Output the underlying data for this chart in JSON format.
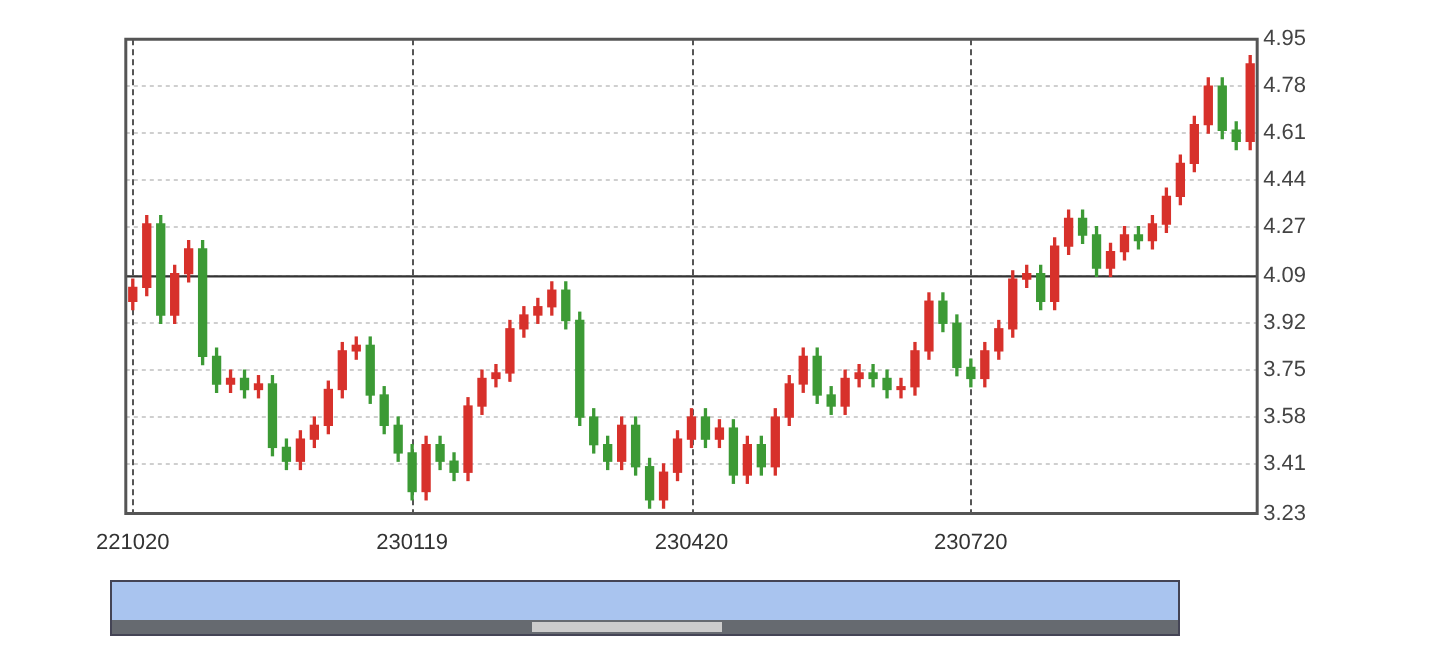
{
  "chart_data": {
    "type": "candlestick",
    "categories": [
      "221020",
      null,
      null,
      null,
      null,
      null,
      null,
      null,
      null,
      null,
      null,
      null,
      null,
      null,
      null,
      null,
      null,
      null,
      null,
      null,
      "230119",
      null,
      null,
      null,
      null,
      null,
      null,
      null,
      null,
      null,
      null,
      null,
      null,
      null,
      null,
      null,
      null,
      null,
      null,
      null,
      "230420",
      null,
      null,
      null,
      null,
      null,
      null,
      null,
      null,
      null,
      null,
      null,
      null,
      null,
      null,
      null,
      null,
      null,
      null,
      null,
      "230720",
      null,
      null,
      null,
      null,
      null,
      null,
      null,
      null,
      null,
      null,
      null,
      null,
      null,
      null,
      null,
      null,
      null,
      null,
      null,
      null
    ],
    "ohlc": [
      [
        4.0,
        4.08,
        3.97,
        4.05
      ],
      [
        4.05,
        4.31,
        4.02,
        4.28
      ],
      [
        4.28,
        4.31,
        3.92,
        3.95
      ],
      [
        3.95,
        4.13,
        3.92,
        4.1
      ],
      [
        4.1,
        4.22,
        4.07,
        4.19
      ],
      [
        4.19,
        4.22,
        3.77,
        3.8
      ],
      [
        3.8,
        3.83,
        3.67,
        3.7
      ],
      [
        3.7,
        3.75,
        3.67,
        3.72
      ],
      [
        3.72,
        3.75,
        3.65,
        3.68
      ],
      [
        3.68,
        3.73,
        3.65,
        3.7
      ],
      [
        3.7,
        3.73,
        3.44,
        3.47
      ],
      [
        3.47,
        3.5,
        3.39,
        3.42
      ],
      [
        3.42,
        3.53,
        3.39,
        3.5
      ],
      [
        3.5,
        3.58,
        3.47,
        3.55
      ],
      [
        3.55,
        3.71,
        3.52,
        3.68
      ],
      [
        3.68,
        3.85,
        3.65,
        3.82
      ],
      [
        3.82,
        3.87,
        3.79,
        3.84
      ],
      [
        3.84,
        3.87,
        3.63,
        3.66
      ],
      [
        3.66,
        3.69,
        3.52,
        3.55
      ],
      [
        3.55,
        3.58,
        3.42,
        3.45
      ],
      [
        3.45,
        3.48,
        3.28,
        3.31
      ],
      [
        3.31,
        3.51,
        3.28,
        3.48
      ],
      [
        3.48,
        3.51,
        3.39,
        3.42
      ],
      [
        3.42,
        3.45,
        3.35,
        3.38
      ],
      [
        3.38,
        3.65,
        3.35,
        3.62
      ],
      [
        3.62,
        3.75,
        3.59,
        3.72
      ],
      [
        3.72,
        3.77,
        3.69,
        3.74
      ],
      [
        3.74,
        3.93,
        3.71,
        3.9
      ],
      [
        3.9,
        3.98,
        3.87,
        3.95
      ],
      [
        3.95,
        4.01,
        3.92,
        3.98
      ],
      [
        3.98,
        4.07,
        3.95,
        4.04
      ],
      [
        4.04,
        4.07,
        3.9,
        3.93
      ],
      [
        3.93,
        3.96,
        3.55,
        3.58
      ],
      [
        3.58,
        3.61,
        3.45,
        3.48
      ],
      [
        3.48,
        3.51,
        3.39,
        3.42
      ],
      [
        3.42,
        3.58,
        3.39,
        3.55
      ],
      [
        3.55,
        3.58,
        3.37,
        3.4
      ],
      [
        3.4,
        3.43,
        3.25,
        3.28
      ],
      [
        3.28,
        3.41,
        3.25,
        3.38
      ],
      [
        3.38,
        3.53,
        3.35,
        3.5
      ],
      [
        3.5,
        3.61,
        3.47,
        3.58
      ],
      [
        3.58,
        3.61,
        3.47,
        3.5
      ],
      [
        3.5,
        3.57,
        3.47,
        3.54
      ],
      [
        3.54,
        3.57,
        3.34,
        3.37
      ],
      [
        3.37,
        3.51,
        3.34,
        3.48
      ],
      [
        3.48,
        3.51,
        3.37,
        3.4
      ],
      [
        3.4,
        3.61,
        3.37,
        3.58
      ],
      [
        3.58,
        3.73,
        3.55,
        3.7
      ],
      [
        3.7,
        3.83,
        3.67,
        3.8
      ],
      [
        3.8,
        3.83,
        3.63,
        3.66
      ],
      [
        3.66,
        3.69,
        3.59,
        3.62
      ],
      [
        3.62,
        3.75,
        3.59,
        3.72
      ],
      [
        3.72,
        3.77,
        3.69,
        3.74
      ],
      [
        3.74,
        3.77,
        3.69,
        3.72
      ],
      [
        3.72,
        3.75,
        3.65,
        3.68
      ],
      [
        3.68,
        3.72,
        3.65,
        3.69
      ],
      [
        3.69,
        3.85,
        3.66,
        3.82
      ],
      [
        3.82,
        4.03,
        3.79,
        4.0
      ],
      [
        4.0,
        4.03,
        3.89,
        3.92
      ],
      [
        3.92,
        3.95,
        3.73,
        3.76
      ],
      [
        3.76,
        3.79,
        3.69,
        3.72
      ],
      [
        3.72,
        3.85,
        3.69,
        3.82
      ],
      [
        3.82,
        3.93,
        3.79,
        3.9
      ],
      [
        3.9,
        4.11,
        3.87,
        4.08
      ],
      [
        4.08,
        4.13,
        4.05,
        4.1
      ],
      [
        4.1,
        4.13,
        3.97,
        4.0
      ],
      [
        4.0,
        4.23,
        3.97,
        4.2
      ],
      [
        4.2,
        4.33,
        4.17,
        4.3
      ],
      [
        4.3,
        4.33,
        4.21,
        4.24
      ],
      [
        4.24,
        4.27,
        4.09,
        4.12
      ],
      [
        4.12,
        4.21,
        4.09,
        4.18
      ],
      [
        4.18,
        4.27,
        4.15,
        4.24
      ],
      [
        4.24,
        4.27,
        4.19,
        4.22
      ],
      [
        4.22,
        4.31,
        4.19,
        4.28
      ],
      [
        4.28,
        4.41,
        4.25,
        4.38
      ],
      [
        4.38,
        4.53,
        4.35,
        4.5
      ],
      [
        4.5,
        4.67,
        4.47,
        4.64
      ],
      [
        4.64,
        4.81,
        4.61,
        4.78
      ],
      [
        4.78,
        4.81,
        4.59,
        4.62
      ],
      [
        4.62,
        4.65,
        4.55,
        4.58
      ],
      [
        4.58,
        4.89,
        4.55,
        4.86
      ]
    ],
    "ylim": [
      3.23,
      4.95
    ],
    "yticks": [
      3.23,
      3.41,
      3.58,
      3.75,
      3.92,
      4.09,
      4.27,
      4.44,
      4.61,
      4.78,
      4.95
    ],
    "grid": true,
    "ref_lines": [
      {
        "axis": "y",
        "value": 4.09,
        "color": "#333333"
      }
    ]
  }
}
